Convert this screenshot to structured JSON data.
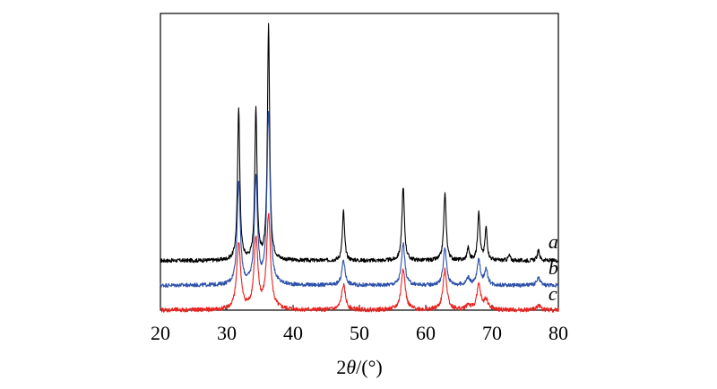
{
  "chart_data": {
    "type": "line",
    "title": "",
    "xlabel": {
      "prefix": "2",
      "symbol": "θ",
      "suffix": "/(°)"
    },
    "ylabel": "",
    "xlim": [
      20,
      80
    ],
    "ylim": [
      0,
      1.2
    ],
    "xticks": [
      20,
      30,
      40,
      50,
      60,
      70,
      80
    ],
    "grid": false,
    "legend": "none",
    "series": [
      {
        "name": "a",
        "color": "#000000",
        "baseline": 0.2,
        "noise": 0.008,
        "peaks": [
          {
            "x": 31.8,
            "h": 0.62,
            "w": 0.2
          },
          {
            "x": 34.4,
            "h": 0.61,
            "w": 0.2
          },
          {
            "x": 36.3,
            "h": 0.95,
            "w": 0.2
          },
          {
            "x": 47.6,
            "h": 0.2,
            "w": 0.2
          },
          {
            "x": 56.6,
            "h": 0.3,
            "w": 0.22
          },
          {
            "x": 62.9,
            "h": 0.27,
            "w": 0.22
          },
          {
            "x": 66.4,
            "h": 0.05,
            "w": 0.2
          },
          {
            "x": 68.0,
            "h": 0.2,
            "w": 0.2
          },
          {
            "x": 69.1,
            "h": 0.13,
            "w": 0.2
          },
          {
            "x": 72.6,
            "h": 0.02,
            "w": 0.2
          },
          {
            "x": 77.0,
            "h": 0.04,
            "w": 0.22
          }
        ]
      },
      {
        "name": "b",
        "color": "#2b50a8",
        "baseline": 0.1,
        "noise": 0.008,
        "peaks": [
          {
            "x": 31.8,
            "h": 0.42,
            "w": 0.28
          },
          {
            "x": 34.4,
            "h": 0.43,
            "w": 0.28
          },
          {
            "x": 36.3,
            "h": 0.7,
            "w": 0.28
          },
          {
            "x": 47.6,
            "h": 0.1,
            "w": 0.3
          },
          {
            "x": 56.6,
            "h": 0.17,
            "w": 0.3
          },
          {
            "x": 62.9,
            "h": 0.15,
            "w": 0.3
          },
          {
            "x": 66.4,
            "h": 0.03,
            "w": 0.3
          },
          {
            "x": 68.0,
            "h": 0.1,
            "w": 0.3
          },
          {
            "x": 69.1,
            "h": 0.06,
            "w": 0.3
          },
          {
            "x": 77.0,
            "h": 0.03,
            "w": 0.3
          }
        ]
      },
      {
        "name": "c",
        "color": "#e8231f",
        "baseline": 0.0,
        "noise": 0.009,
        "peaks": [
          {
            "x": 31.8,
            "h": 0.27,
            "w": 0.35
          },
          {
            "x": 34.4,
            "h": 0.28,
            "w": 0.35
          },
          {
            "x": 36.3,
            "h": 0.38,
            "w": 0.35
          },
          {
            "x": 47.6,
            "h": 0.1,
            "w": 0.35
          },
          {
            "x": 56.6,
            "h": 0.17,
            "w": 0.35
          },
          {
            "x": 62.9,
            "h": 0.16,
            "w": 0.35
          },
          {
            "x": 66.4,
            "h": 0.02,
            "w": 0.35
          },
          {
            "x": 68.0,
            "h": 0.1,
            "w": 0.35
          },
          {
            "x": 69.1,
            "h": 0.04,
            "w": 0.35
          },
          {
            "x": 77.0,
            "h": 0.02,
            "w": 0.35
          }
        ]
      }
    ],
    "series_labels": [
      {
        "text": "a",
        "x": 78.5,
        "y": 0.25
      },
      {
        "text": "b",
        "x": 78.5,
        "y": 0.145
      },
      {
        "text": "c",
        "x": 78.5,
        "y": 0.04
      }
    ]
  }
}
